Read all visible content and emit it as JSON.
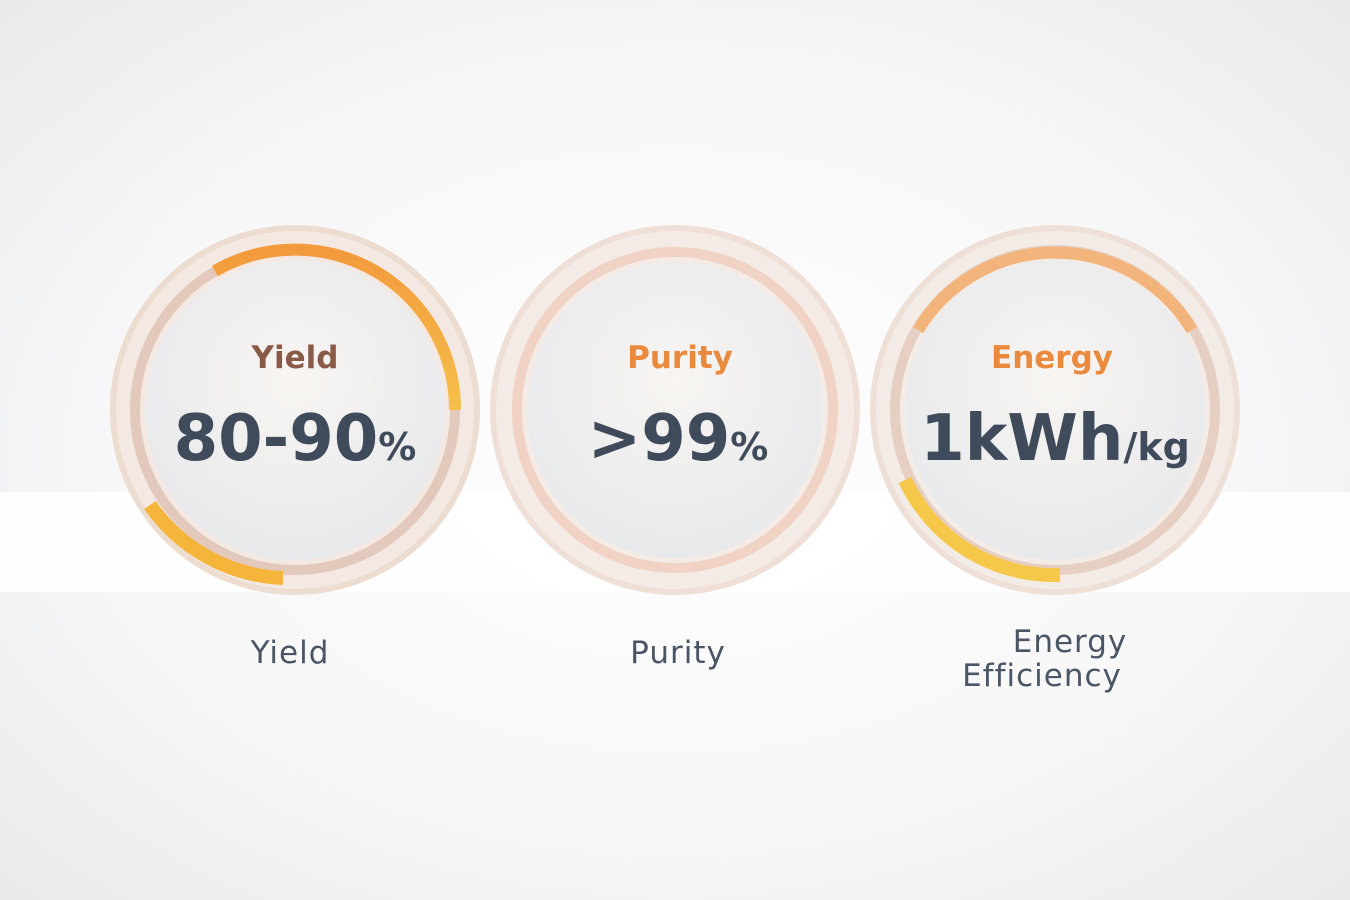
{
  "cards": [
    {
      "title": "Yield",
      "value": "80-90",
      "unit": "%",
      "caption_lines": [
        "Yield"
      ]
    },
    {
      "title": "Purity",
      "value": ">99",
      "unit": "%",
      "caption_lines": [
        "Purity"
      ]
    },
    {
      "title": "Energy",
      "value": "1kWh",
      "unit": "/kg",
      "caption_lines": [
        "Energy",
        "Efficiency"
      ]
    }
  ]
}
